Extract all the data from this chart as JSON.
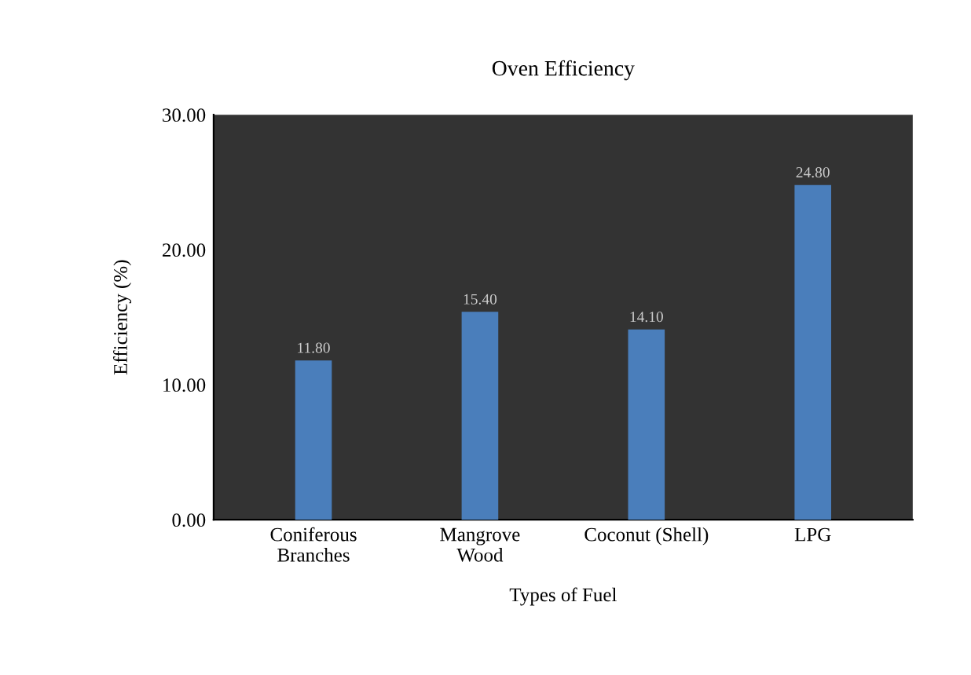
{
  "chart_data": {
    "type": "bar",
    "title": "Oven Efficiency",
    "xlabel": "Types of Fuel",
    "ylabel": "Efficiency (%)",
    "categories": [
      "Coniferous\nBranches",
      "Mangrove\nWood",
      "Coconut (Shell)",
      "LPG"
    ],
    "values": [
      11.8,
      15.4,
      14.1,
      24.8
    ],
    "color": "#4a7ebb",
    "value_labels": [
      "11.80",
      "15.40",
      "14.10",
      "24.80"
    ],
    "ylim": [
      0,
      30
    ],
    "yticks": [
      {
        "value": 0,
        "label": "0.00"
      },
      {
        "value": 10,
        "label": "10.00"
      },
      {
        "value": 20,
        "label": "20.00"
      },
      {
        "value": 30,
        "label": "30.00"
      }
    ],
    "grid": false
  }
}
